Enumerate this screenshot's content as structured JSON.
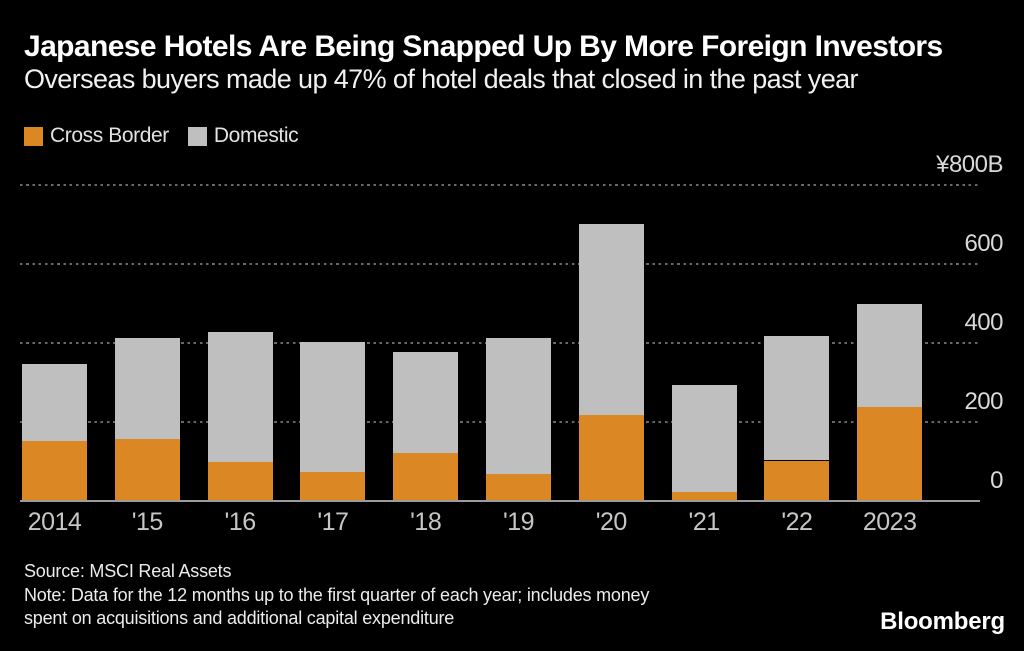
{
  "chart_data": {
    "type": "bar",
    "stacked": true,
    "title": "Japanese Hotels Are Being Snapped Up By More Foreign Investors",
    "subtitle": "Overseas buyers made up 47% of hotel deals that closed in the past year",
    "unit": "billion yen",
    "categories": [
      "2014",
      "'15",
      "'16",
      "'17",
      "'18",
      "'19",
      "'20",
      "'21",
      "'22",
      "2023"
    ],
    "series": [
      {
        "name": "Cross Border",
        "color": "#db8724",
        "values": [
          150,
          155,
          95,
          70,
          120,
          65,
          215,
          20,
          100,
          235
        ]
      },
      {
        "name": "Domestic",
        "color": "#bfbfbf",
        "values": [
          195,
          255,
          330,
          330,
          255,
          345,
          485,
          270,
          315,
          260
        ]
      }
    ],
    "totals": [
      345,
      410,
      425,
      400,
      375,
      410,
      700,
      290,
      415,
      495
    ],
    "ylim": [
      0,
      800
    ],
    "yticks": [
      {
        "value": 800,
        "label": "¥800B"
      },
      {
        "value": 600,
        "label": "600"
      },
      {
        "value": 400,
        "label": "400"
      },
      {
        "value": 200,
        "label": "200"
      },
      {
        "value": 0,
        "label": "0"
      }
    ],
    "grid": "horizontal-dotted",
    "legend_position": "top-left",
    "colors": {
      "background": "#000000",
      "title_text": "#ffffff",
      "axis_line": "#9c9c9c",
      "gridline": "#686868",
      "tick_text": "#c6c6c6"
    }
  },
  "footer": {
    "source": "Source: MSCI Real Assets",
    "note_line1": "Note: Data for the 12 months up to the first quarter of each year; includes money",
    "note_line2": "spent on acquisitions and additional capital expenditure",
    "logo": "Bloomberg"
  }
}
